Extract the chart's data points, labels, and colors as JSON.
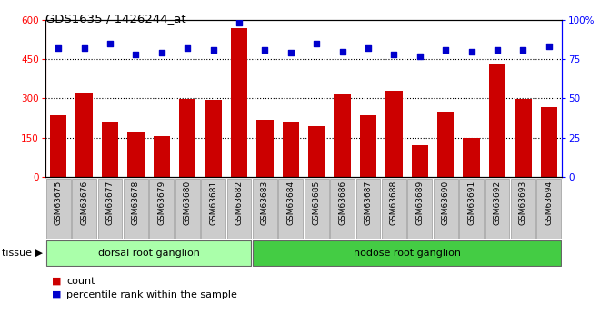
{
  "title": "GDS1635 / 1426244_at",
  "categories": [
    "GSM63675",
    "GSM63676",
    "GSM63677",
    "GSM63678",
    "GSM63679",
    "GSM63680",
    "GSM63681",
    "GSM63682",
    "GSM63683",
    "GSM63684",
    "GSM63685",
    "GSM63686",
    "GSM63687",
    "GSM63688",
    "GSM63689",
    "GSM63690",
    "GSM63691",
    "GSM63692",
    "GSM63693",
    "GSM63694"
  ],
  "counts": [
    235,
    320,
    210,
    175,
    157,
    298,
    295,
    570,
    220,
    210,
    195,
    315,
    235,
    330,
    120,
    250,
    148,
    430,
    298,
    268
  ],
  "percentiles": [
    82,
    82,
    85,
    78,
    79,
    82,
    81,
    98,
    81,
    79,
    85,
    80,
    82,
    78,
    77,
    81,
    80,
    81,
    81,
    83
  ],
  "bar_color": "#CC0000",
  "dot_color": "#0000CC",
  "left_ylim": [
    0,
    600
  ],
  "right_ylim": [
    0,
    100
  ],
  "left_yticks": [
    0,
    150,
    300,
    450,
    600
  ],
  "right_yticks": [
    0,
    25,
    50,
    75,
    100
  ],
  "grid_values": [
    150,
    300,
    450
  ],
  "tissue_groups": [
    {
      "label": "dorsal root ganglion",
      "start": 0,
      "end": 8,
      "color": "#AAFFAA"
    },
    {
      "label": "nodose root ganglion",
      "start": 8,
      "end": 20,
      "color": "#44CC44"
    }
  ],
  "tissue_label": "tissue",
  "legend_count_label": "count",
  "legend_pct_label": "percentile rank within the sample",
  "fig_bg": "#FFFFFF",
  "plot_bg": "#FFFFFF",
  "tick_label_bg": "#CCCCCC",
  "tick_label_edge": "#999999"
}
